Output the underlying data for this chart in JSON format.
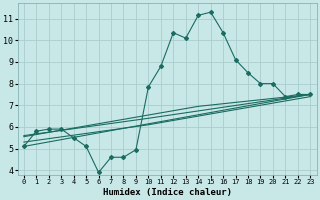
{
  "xlabel": "Humidex (Indice chaleur)",
  "xlim": [
    -0.5,
    23.5
  ],
  "ylim": [
    3.8,
    11.7
  ],
  "yticks": [
    4,
    5,
    6,
    7,
    8,
    9,
    10,
    11
  ],
  "xticks": [
    0,
    1,
    2,
    3,
    4,
    5,
    6,
    7,
    8,
    9,
    10,
    11,
    12,
    13,
    14,
    15,
    16,
    17,
    18,
    19,
    20,
    21,
    22,
    23
  ],
  "bg_color": "#c8e8e8",
  "grid_color": "#aacccc",
  "line_color": "#1a6b60",
  "series1_x": [
    0,
    1,
    2,
    3,
    4,
    5,
    6,
    7,
    8,
    9,
    10,
    11,
    12,
    13,
    14,
    15,
    16,
    17,
    18,
    19,
    20,
    21,
    22,
    23
  ],
  "series1_y": [
    5.1,
    5.8,
    5.9,
    5.9,
    5.5,
    5.1,
    3.9,
    4.6,
    4.6,
    4.95,
    7.85,
    8.8,
    10.35,
    10.1,
    11.15,
    11.3,
    10.35,
    9.1,
    8.5,
    8.0,
    8.0,
    7.4,
    7.5,
    7.5
  ],
  "series2_x": [
    0,
    23
  ],
  "series2_y": [
    5.1,
    7.5
  ],
  "series3_x": [
    0,
    10,
    23
  ],
  "series3_y": [
    5.6,
    6.4,
    7.5
  ],
  "series4_x": [
    0,
    10,
    23
  ],
  "series4_y": [
    5.3,
    6.1,
    7.4
  ],
  "series5_x": [
    0,
    14,
    23
  ],
  "series5_y": [
    5.55,
    6.95,
    7.5
  ]
}
